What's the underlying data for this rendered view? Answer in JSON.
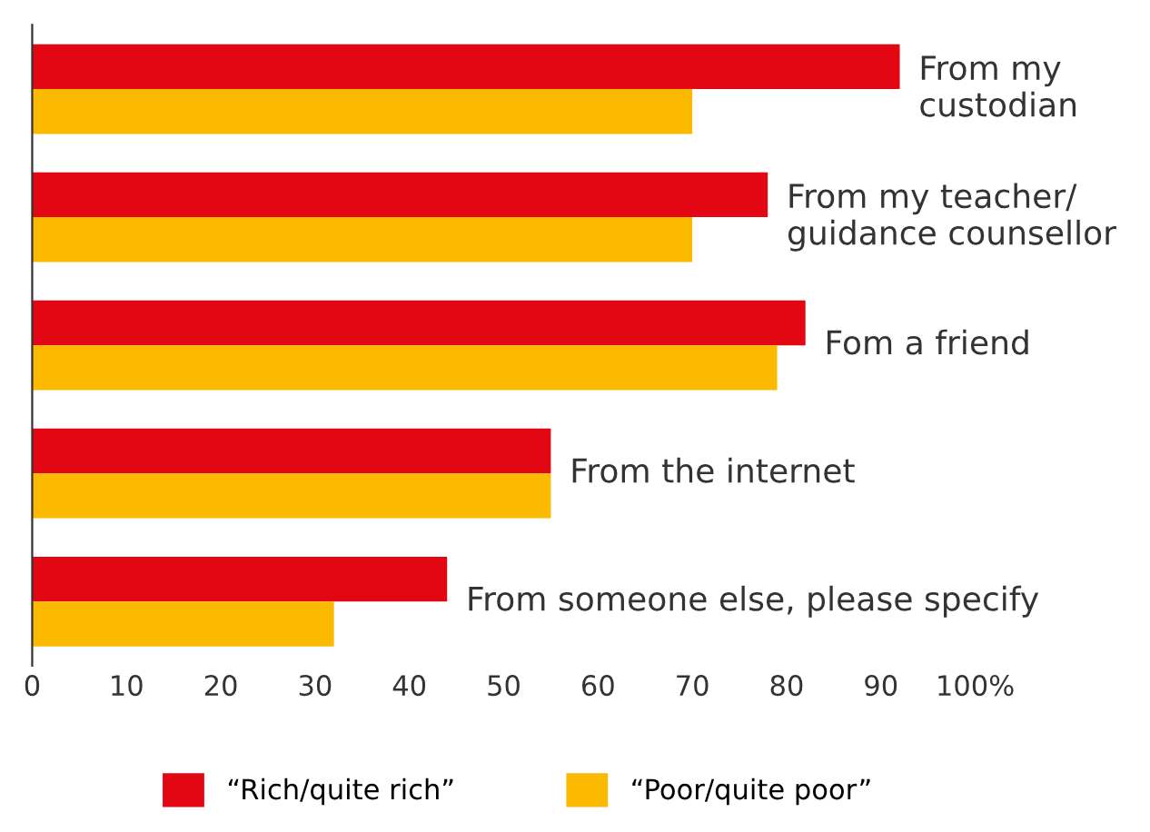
{
  "chart_data": {
    "type": "bar",
    "orientation": "horizontal",
    "categories": [
      "From my\ncustodian",
      "From my teacher/\nguidance counsellor",
      "Fom a friend",
      "From the internet",
      "From someone else, please specify"
    ],
    "series": [
      {
        "name": "“Rich/quite rich”",
        "color": "#e30613",
        "values": [
          92,
          78,
          82,
          55,
          44
        ]
      },
      {
        "name": "“Poor/quite poor”",
        "color": "#fbb900",
        "values": [
          70,
          70,
          79,
          55,
          32
        ]
      }
    ],
    "xlim": [
      0,
      100
    ],
    "xticks": [
      0,
      10,
      20,
      30,
      40,
      50,
      60,
      70,
      80,
      90,
      {
        "value": 100,
        "label": "100%"
      }
    ],
    "tick_labels": "x",
    "grid": false,
    "legend": "bottom"
  }
}
